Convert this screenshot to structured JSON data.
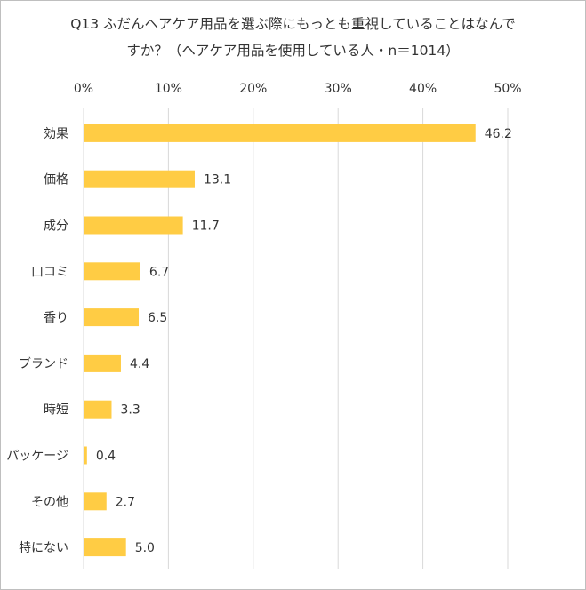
{
  "chart_data": {
    "type": "bar",
    "orientation": "horizontal",
    "title_lines": [
      "Q13 ふだんヘアケア用品を選ぶ際にもっとも重視していることはなんで",
      "すか？（ヘアケア用品を使用している人・n＝1014）"
    ],
    "xlabel": "",
    "ylabel": "",
    "xlim": [
      0,
      50
    ],
    "xticks": [
      "0%",
      "10%",
      "20%",
      "30%",
      "40%",
      "50%"
    ],
    "tick_values": [
      0,
      10,
      20,
      30,
      40,
      50
    ],
    "axis_position": "top",
    "grid": true,
    "categories": [
      "効果",
      "価格",
      "成分",
      "口コミ",
      "香り",
      "ブランド",
      "時短",
      "パッケージ",
      "その他",
      "特にない"
    ],
    "values": [
      46.2,
      13.1,
      11.7,
      6.7,
      6.5,
      4.4,
      3.3,
      0.4,
      2.7,
      5.0
    ],
    "value_labels": [
      "46.2",
      "13.1",
      "11.7",
      "6.7",
      "6.5",
      "4.4",
      "3.3",
      "0.4",
      "2.7",
      "5.0"
    ],
    "bar_color": "#FFCC44",
    "grid_color": "#d9d9d9"
  }
}
